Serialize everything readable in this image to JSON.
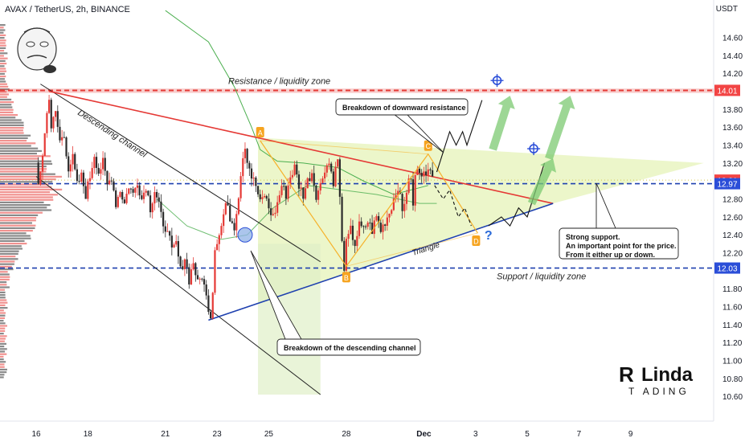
{
  "header": {
    "symbol_label": "AVAX / TetherUS, 2h, BINANCE",
    "currency": "USDT"
  },
  "colors": {
    "bull": "#e53935",
    "bear": "#2b2b2b",
    "resistance": "#e53935",
    "support": "#1e40af",
    "pattern_fill": "#e6f3b8",
    "wave": "#f6b22b",
    "label_bg": "#f6a41f",
    "arrow_green": "#7cc972",
    "price_tag_red": "#f24444",
    "price_tag_blue": "#2b4ed8",
    "ma": "#4caf50"
  },
  "chart_data": {
    "type": "candlestick",
    "y_axis": {
      "ticks": [
        "14.60",
        "14.40",
        "14.20",
        "13.80",
        "13.60",
        "13.40",
        "13.20",
        "12.80",
        "12.60",
        "12.40",
        "12.20",
        "11.80",
        "11.60",
        "11.40",
        "11.20",
        "11.00",
        "10.80",
        "10.60"
      ],
      "range": [
        10.45,
        14.82
      ]
    },
    "x_axis": {
      "ticks": [
        {
          "label": "16",
          "index": 0
        },
        {
          "label": "18",
          "index": 24
        },
        {
          "label": "21",
          "index": 60
        },
        {
          "label": "23",
          "index": 84
        },
        {
          "label": "25",
          "index": 108
        },
        {
          "label": "28",
          "index": 144
        },
        {
          "label": "Dec",
          "index": 180
        },
        {
          "label": "3",
          "index": 204
        },
        {
          "label": "5",
          "index": 228
        },
        {
          "label": "7",
          "index": 252
        },
        {
          "label": "9",
          "index": 276
        }
      ]
    },
    "price_tags": [
      {
        "value": "14.01",
        "color": "price_tag_red"
      },
      {
        "value": "13.01",
        "color": "price_tag_red"
      },
      {
        "value": "12.97",
        "color": "price_tag_blue"
      },
      {
        "value": "12.03",
        "color": "price_tag_blue"
      }
    ],
    "candle_anchors": [
      {
        "i": 0,
        "p": 13.15
      },
      {
        "i": 1,
        "p": 12.95
      },
      {
        "i": 3,
        "p": 13.3
      },
      {
        "i": 5,
        "p": 13.75
      },
      {
        "i": 6,
        "p": 13.95
      },
      {
        "i": 7,
        "p": 13.6
      },
      {
        "i": 9,
        "p": 13.75
      },
      {
        "i": 11,
        "p": 13.45
      },
      {
        "i": 13,
        "p": 13.5
      },
      {
        "i": 15,
        "p": 13.15
      },
      {
        "i": 17,
        "p": 13.25
      },
      {
        "i": 19,
        "p": 12.95
      },
      {
        "i": 21,
        "p": 13.05
      },
      {
        "i": 23,
        "p": 12.85
      },
      {
        "i": 25,
        "p": 13.05
      },
      {
        "i": 27,
        "p": 13.3
      },
      {
        "i": 29,
        "p": 13.1
      },
      {
        "i": 31,
        "p": 13.2
      },
      {
        "i": 33,
        "p": 12.95
      },
      {
        "i": 35,
        "p": 13.05
      },
      {
        "i": 37,
        "p": 12.75
      },
      {
        "i": 39,
        "p": 12.9
      },
      {
        "i": 41,
        "p": 12.75
      },
      {
        "i": 43,
        "p": 12.95
      },
      {
        "i": 45,
        "p": 12.85
      },
      {
        "i": 47,
        "p": 13.0
      },
      {
        "i": 49,
        "p": 12.8
      },
      {
        "i": 51,
        "p": 12.95
      },
      {
        "i": 53,
        "p": 12.7
      },
      {
        "i": 55,
        "p": 12.9
      },
      {
        "i": 57,
        "p": 12.75
      },
      {
        "i": 59,
        "p": 12.45
      },
      {
        "i": 61,
        "p": 12.5
      },
      {
        "i": 63,
        "p": 12.2
      },
      {
        "i": 65,
        "p": 12.3
      },
      {
        "i": 67,
        "p": 12.0
      },
      {
        "i": 69,
        "p": 12.15
      },
      {
        "i": 71,
        "p": 11.9
      },
      {
        "i": 73,
        "p": 12.1
      },
      {
        "i": 75,
        "p": 11.85
      },
      {
        "i": 77,
        "p": 11.95
      },
      {
        "i": 79,
        "p": 11.7
      },
      {
        "i": 81,
        "p": 11.5
      },
      {
        "i": 82,
        "p": 11.8
      },
      {
        "i": 83,
        "p": 12.25
      },
      {
        "i": 84,
        "p": 12.35
      },
      {
        "i": 86,
        "p": 12.5
      },
      {
        "i": 88,
        "p": 12.75
      },
      {
        "i": 90,
        "p": 12.6
      },
      {
        "i": 92,
        "p": 12.5
      },
      {
        "i": 94,
        "p": 12.85
      },
      {
        "i": 96,
        "p": 13.3
      },
      {
        "i": 97,
        "p": 13.38
      },
      {
        "i": 98,
        "p": 13.25
      },
      {
        "i": 100,
        "p": 13.05
      },
      {
        "i": 102,
        "p": 12.95
      },
      {
        "i": 104,
        "p": 12.75
      },
      {
        "i": 106,
        "p": 12.85
      },
      {
        "i": 108,
        "p": 12.7
      },
      {
        "i": 110,
        "p": 12.6
      },
      {
        "i": 112,
        "p": 12.75
      },
      {
        "i": 114,
        "p": 12.95
      },
      {
        "i": 116,
        "p": 12.85
      },
      {
        "i": 118,
        "p": 13.05
      },
      {
        "i": 120,
        "p": 13.15
      },
      {
        "i": 122,
        "p": 12.95
      },
      {
        "i": 124,
        "p": 12.85
      },
      {
        "i": 126,
        "p": 13.0
      },
      {
        "i": 128,
        "p": 13.1
      },
      {
        "i": 130,
        "p": 12.85
      },
      {
        "i": 132,
        "p": 12.95
      },
      {
        "i": 134,
        "p": 13.15
      },
      {
        "i": 136,
        "p": 13.2
      },
      {
        "i": 138,
        "p": 13.0
      },
      {
        "i": 140,
        "p": 13.25
      },
      {
        "i": 141,
        "p": 12.8
      },
      {
        "i": 142,
        "p": 12.3
      },
      {
        "i": 143,
        "p": 12.05
      },
      {
        "i": 144,
        "p": 12.3
      },
      {
        "i": 146,
        "p": 12.45
      },
      {
        "i": 148,
        "p": 12.3
      },
      {
        "i": 150,
        "p": 12.5
      },
      {
        "i": 152,
        "p": 12.45
      },
      {
        "i": 154,
        "p": 12.55
      },
      {
        "i": 156,
        "p": 12.45
      },
      {
        "i": 158,
        "p": 12.6
      },
      {
        "i": 160,
        "p": 12.45
      },
      {
        "i": 162,
        "p": 12.55
      },
      {
        "i": 164,
        "p": 12.65
      },
      {
        "i": 166,
        "p": 12.8
      },
      {
        "i": 168,
        "p": 12.95
      },
      {
        "i": 170,
        "p": 12.65
      },
      {
        "i": 172,
        "p": 12.9
      },
      {
        "i": 174,
        "p": 13.05
      },
      {
        "i": 175,
        "p": 12.7
      },
      {
        "i": 176,
        "p": 13.05
      },
      {
        "i": 177,
        "p": 13.15
      },
      {
        "i": 178,
        "p": 13.05
      },
      {
        "i": 180,
        "p": 13.15
      },
      {
        "i": 182,
        "p": 13.1
      },
      {
        "i": 184,
        "p": 13.05
      }
    ],
    "last_candle_index": 184,
    "total_slots": 290,
    "moving_average": [
      {
        "i": 60,
        "p": 14.9
      },
      {
        "i": 80,
        "p": 14.55
      },
      {
        "i": 92,
        "p": 14.05
      },
      {
        "i": 100,
        "p": 13.6
      },
      {
        "i": 104,
        "p": 13.35
      },
      {
        "i": 112,
        "p": 13.22
      },
      {
        "i": 124,
        "p": 13.2
      },
      {
        "i": 140,
        "p": 13.15
      },
      {
        "i": 152,
        "p": 13.0
      },
      {
        "i": 166,
        "p": 12.85
      },
      {
        "i": 182,
        "p": 12.95
      }
    ],
    "moving_average_2": [
      {
        "i": 56,
        "p": 12.8
      },
      {
        "i": 70,
        "p": 12.5
      },
      {
        "i": 86,
        "p": 12.35
      },
      {
        "i": 98,
        "p": 12.4
      },
      {
        "i": 110,
        "p": 12.7
      },
      {
        "i": 126,
        "p": 12.95
      },
      {
        "i": 142,
        "p": 12.9
      },
      {
        "i": 158,
        "p": 12.85
      },
      {
        "i": 178,
        "p": 12.75
      },
      {
        "i": 186,
        "p": 12.75
      }
    ],
    "levels": [
      {
        "name": "resistance",
        "value": 14.01
      },
      {
        "name": "dotted",
        "value": 13.01
      },
      {
        "name": "dashed-upper",
        "value": 12.97
      },
      {
        "name": "dashed-lower",
        "value": 12.03
      }
    ],
    "trendlines": {
      "descending_upper": [
        {
          "i": 2,
          "p": 14.08
        },
        {
          "i": 132,
          "p": 12.1
        }
      ],
      "descending_lower": [
        {
          "i": 0,
          "p": 13.05
        },
        {
          "i": 132,
          "p": 10.62
        }
      ],
      "resistance": [
        {
          "i": 6,
          "p": 14.0
        },
        {
          "i": 240,
          "p": 12.75
        }
      ],
      "support": [
        {
          "i": 80,
          "p": 11.45
        },
        {
          "i": 240,
          "p": 12.75
        }
      ]
    },
    "annotations": {
      "resistance_zone": "Resistance / liquidity zone",
      "support_zone": "Support / liquidity zone",
      "descending_channel": "Descending channel",
      "triangle": "Triangle",
      "callout_resistance": "Breakdown of downward resistance",
      "callout_channel": "Breakdown of the descending channel",
      "callout_support_l1": "Strong support.",
      "callout_support_l2": "An important point for the price.",
      "callout_support_l3": "From it either up or down.",
      "wave_labels": [
        "A",
        "B",
        "C",
        "D"
      ],
      "question": "?"
    }
  },
  "branding": {
    "logo_line1": "Linda",
    "logo_line2": "T ADING"
  }
}
